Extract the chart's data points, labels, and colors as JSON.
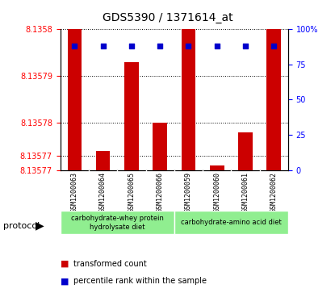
{
  "title": "GDS5390 / 1371614_at",
  "samples": [
    "GSM1200063",
    "GSM1200064",
    "GSM1200065",
    "GSM1200066",
    "GSM1200059",
    "GSM1200060",
    "GSM1200061",
    "GSM1200062"
  ],
  "transformed_counts": [
    8.13582,
    8.135774,
    8.135793,
    8.13578,
    8.13582,
    8.135771,
    8.135778,
    8.135825
  ],
  "percentile_ranks": [
    88,
    88,
    88,
    88,
    88,
    88,
    88,
    88
  ],
  "ylim_min": 8.13577,
  "ylim_max": 8.1358,
  "yticks": [
    8.13577,
    8.13577,
    8.13578,
    8.13579,
    8.1358
  ],
  "ytick_labels": [
    "8.13577",
    "8.13577",
    "8.13578",
    "8.13579",
    "8.1358"
  ],
  "right_yticks": [
    0,
    25,
    50,
    75,
    100
  ],
  "right_ytick_labels": [
    "0",
    "25",
    "50",
    "75",
    "100%"
  ],
  "protocol_groups": [
    {
      "label": "carbohydrate-whey protein\nhydrolysate diet",
      "start": 0,
      "end": 3,
      "color": "#90EE90"
    },
    {
      "label": "carbohydrate-amino acid diet",
      "start": 4,
      "end": 7,
      "color": "#90EE90"
    }
  ],
  "bar_color": "#CC0000",
  "dot_color": "#0000CC",
  "background_color": "#f0f0f0",
  "plot_bg_color": "#ffffff",
  "legend_items": [
    {
      "color": "#CC0000",
      "label": "transformed count"
    },
    {
      "color": "#0000CC",
      "label": "percentile rank within the sample"
    }
  ]
}
